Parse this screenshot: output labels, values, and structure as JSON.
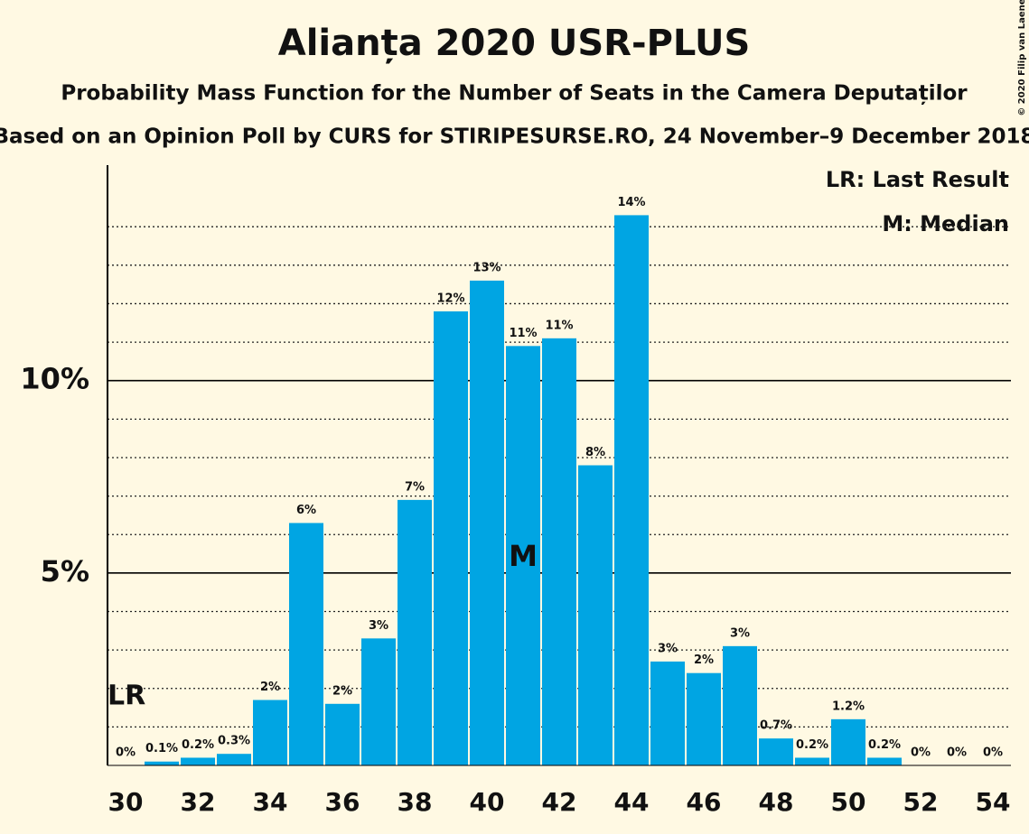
{
  "chart_data": {
    "type": "bar",
    "title": "Alianța 2020 USR-PLUS",
    "subtitle": "Probability Mass Function for the Number of Seats in the Camera Deputaților",
    "source": "Based on an Opinion Poll by CURS for STIRIPESURSE.RO, 24 November–9 December 2018",
    "copyright": "© 2020 Filip van Laenen",
    "categories": [
      30,
      null,
      32,
      null,
      34,
      null,
      36,
      null,
      38,
      null,
      40,
      null,
      42,
      null,
      44,
      null,
      46,
      null,
      48,
      null,
      50,
      null,
      52,
      null,
      54
    ],
    "values": [
      0,
      0.1,
      0.2,
      0.3,
      1.7,
      6.3,
      1.6,
      3.3,
      6.9,
      11.8,
      12.6,
      10.9,
      11.1,
      7.8,
      14.3,
      2.7,
      2.4,
      3.1,
      0.7,
      0.2,
      1.2,
      0.2,
      0,
      0,
      0
    ],
    "value_labels": [
      "0%",
      "0.1%",
      "0.2%",
      "0.3%",
      "2%",
      "6%",
      "2%",
      "3%",
      "7%",
      "12%",
      "13%",
      "11%",
      "11%",
      "8%",
      "14%",
      "3%",
      "2%",
      "3%",
      "0.7%",
      "0.2%",
      "1.2%",
      "0.2%",
      "0%",
      "0%",
      "0%"
    ],
    "color": "#00a5e3",
    "ylim": [
      0,
      15.6
    ],
    "yticks": [
      {
        "value": 5,
        "label": "5%"
      },
      {
        "value": 10,
        "label": "10%"
      }
    ],
    "minor_yticks": [
      1,
      2,
      3,
      4,
      6,
      7,
      8,
      9,
      11,
      12,
      13,
      14
    ],
    "grid": true,
    "last_result": 30,
    "last_result_label": "LR",
    "median": 41,
    "median_label": "M",
    "legend": [
      "LR: Last Result",
      "M: Median"
    ],
    "legend_position": "top-right"
  }
}
